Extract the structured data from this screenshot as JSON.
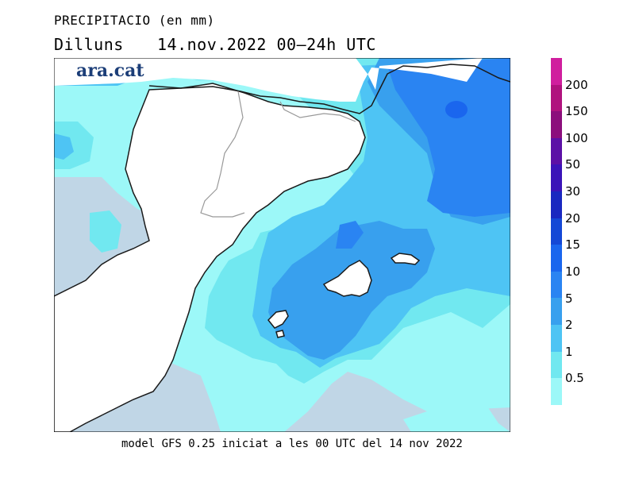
{
  "header": {
    "title": "PRECIPITACIO (en mm)",
    "day": "Dilluns",
    "period": "14.nov.2022 00‒24h UTC"
  },
  "brand": "ara.cat",
  "footer": "model GFS 0.25 iniciat a les 00 UTC del 14 nov 2022",
  "legend": {
    "thresholds": [
      "0.5",
      "1",
      "2",
      "5",
      "10",
      "15",
      "20",
      "30",
      "50",
      "100",
      "150",
      "200"
    ],
    "colors": [
      "#9cf8f8",
      "#71e8f0",
      "#4ec4f4",
      "#38a0ee",
      "#2a84f2",
      "#1a66ee",
      "#1448d6",
      "#1a28c0",
      "#3b14b8",
      "#5c10a6",
      "#8c0e7c",
      "#b0127e",
      "#d01e9e"
    ]
  },
  "map_colors": {
    "sea_background": "#c0d6e6",
    "land": "#ffffff",
    "lightest_precip": "#9cf8f8",
    "light_precip": "#71e8f0",
    "medium_precip": "#4ec4f4",
    "heavy_precip": "#38a0ee",
    "heavier_precip": "#2a84f2",
    "heaviest_precip": "#1a66ee",
    "coastline": "#1a1a1a",
    "borders": "#999999"
  }
}
